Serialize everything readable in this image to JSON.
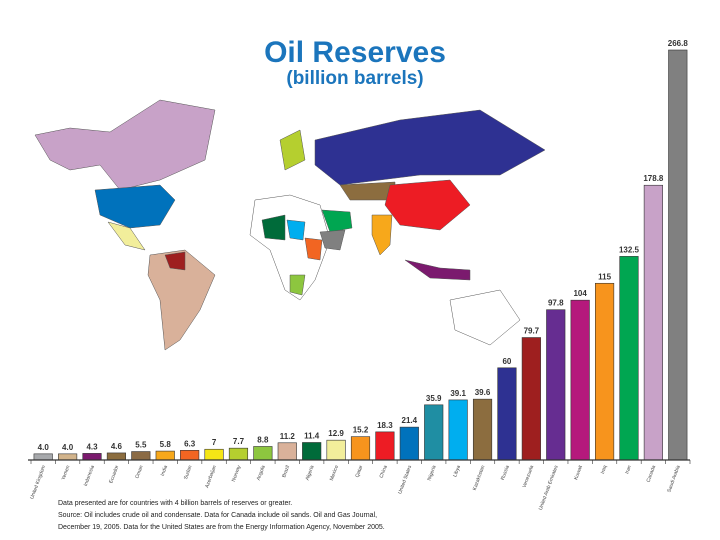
{
  "chart_data": {
    "type": "bar",
    "title": "Oil Reserves",
    "subtitle": "(billion barrels)",
    "categories": [
      "United Kingdom",
      "Yemen",
      "Indonesia",
      "Ecuador",
      "Oman",
      "India",
      "Sudan",
      "Azerbaijan",
      "Norway",
      "Angola",
      "Brazil",
      "Algeria",
      "Mexico",
      "Qatar",
      "China",
      "United States",
      "Nigeria",
      "Libya",
      "Kazakhstan",
      "Russia",
      "Venezuela",
      "United Arab Emirates",
      "Kuwait",
      "Iraq",
      "Iran",
      "Canada",
      "Saudi Arabia"
    ],
    "values": [
      4.0,
      4.0,
      4.3,
      4.6,
      5.5,
      5.8,
      6.3,
      7,
      7.7,
      8.8,
      11.2,
      11.4,
      12.9,
      15.2,
      18.3,
      21.4,
      35.9,
      39.1,
      39.6,
      60,
      79.7,
      97.8,
      104,
      115,
      132.5,
      178.8,
      266.8
    ],
    "value_labels": [
      "4.0",
      "4.0",
      "4.3",
      "4.6",
      "5.5",
      "5.8",
      "6.3",
      "7",
      "7.7",
      "8.8",
      "11.2",
      "11.4",
      "12.9",
      "15.2",
      "18.3",
      "21.4",
      "35.9",
      "39.1",
      "39.6",
      "60",
      "79.7",
      "97.8",
      "104",
      "115",
      "132.5",
      "178.8",
      "266.8"
    ],
    "colors": [
      "#a7a9ac",
      "#d2b48c",
      "#7b1a6e",
      "#8c6d3f",
      "#8b6b45",
      "#f7a81b",
      "#f26522",
      "#f5e616",
      "#b5cf2f",
      "#8dc63f",
      "#d9b19a",
      "#006b3a",
      "#f2ee9b",
      "#f7941d",
      "#ed1c24",
      "#0072bc",
      "#1f8ea3",
      "#00aeef",
      "#8c6d3f",
      "#2e3192",
      "#9e1f1f",
      "#662d91",
      "#b5197c",
      "#f7941d",
      "#00a651",
      "#c8a2c8",
      "#808080"
    ],
    "notes": [
      "Data presented are for countries with 4 billion barrels of reserves or greater.",
      "Source: Oil includes crude oil and condensate. Data for Canada include oil sands. Oil and Gas Journal,",
      "December 19, 2005. Data for the United States are from the Energy Information Agency, November 2005."
    ]
  }
}
